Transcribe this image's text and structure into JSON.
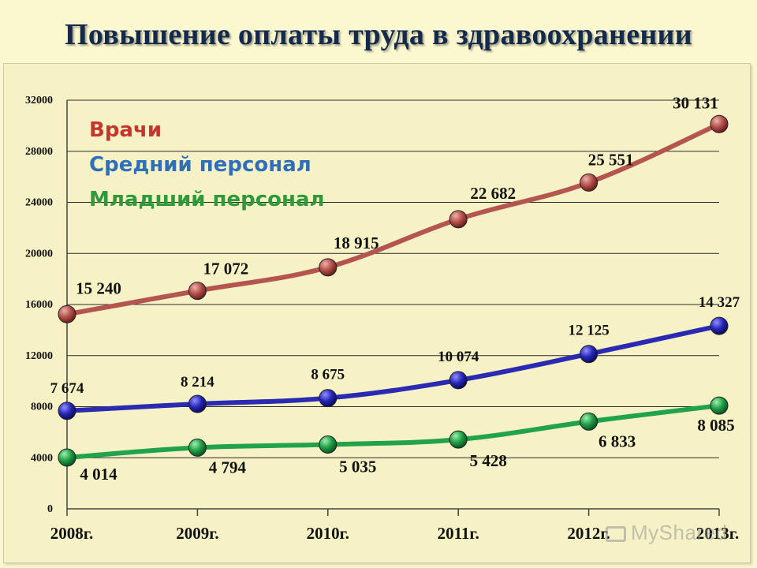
{
  "title": "Повышение оплаты труда в здравоохранении",
  "watermark": "MyShared",
  "colors": {
    "doctors": "#b45550",
    "middle": "#2a2ab2",
    "junior": "#22a34a",
    "doctors_text": "#c43530",
    "middle_text": "#2f6fba",
    "junior_text": "#2f9a3a"
  },
  "chart_data": {
    "type": "line",
    "title": "Повышение оплаты труда в здравоохранении",
    "categories": [
      "2008г.",
      "2009г.",
      "2010г.",
      "2011г.",
      "2012г.",
      "2013г."
    ],
    "ylim": [
      0,
      32000
    ],
    "yticks": [
      0,
      4000,
      8000,
      12000,
      16000,
      20000,
      24000,
      28000,
      32000
    ],
    "ytick_labels": [
      "0",
      "4000",
      "8000",
      "12000",
      "16000",
      "20000",
      "24000",
      "28000",
      "32000"
    ],
    "grid": true,
    "legend_position": "top-left",
    "series": [
      {
        "name": "Врачи",
        "values": [
          15240,
          17072,
          18915,
          22682,
          25551,
          30131
        ],
        "labels": [
          "15 240",
          "17 072",
          "18 915",
          "22 682",
          "25 551",
          "30 131"
        ]
      },
      {
        "name": "Средний персонал",
        "values": [
          7674,
          8214,
          8675,
          10074,
          12125,
          14327
        ],
        "labels": [
          "7 674",
          "8 214",
          "8 675",
          "10 074",
          "12 125",
          "14 327"
        ]
      },
      {
        "name": "Младший персонал",
        "values": [
          4014,
          4794,
          5035,
          5428,
          6833,
          8085
        ],
        "labels": [
          "4 014",
          "4 794",
          "5 035",
          "5 428",
          "6 833",
          "8 085"
        ]
      }
    ]
  }
}
